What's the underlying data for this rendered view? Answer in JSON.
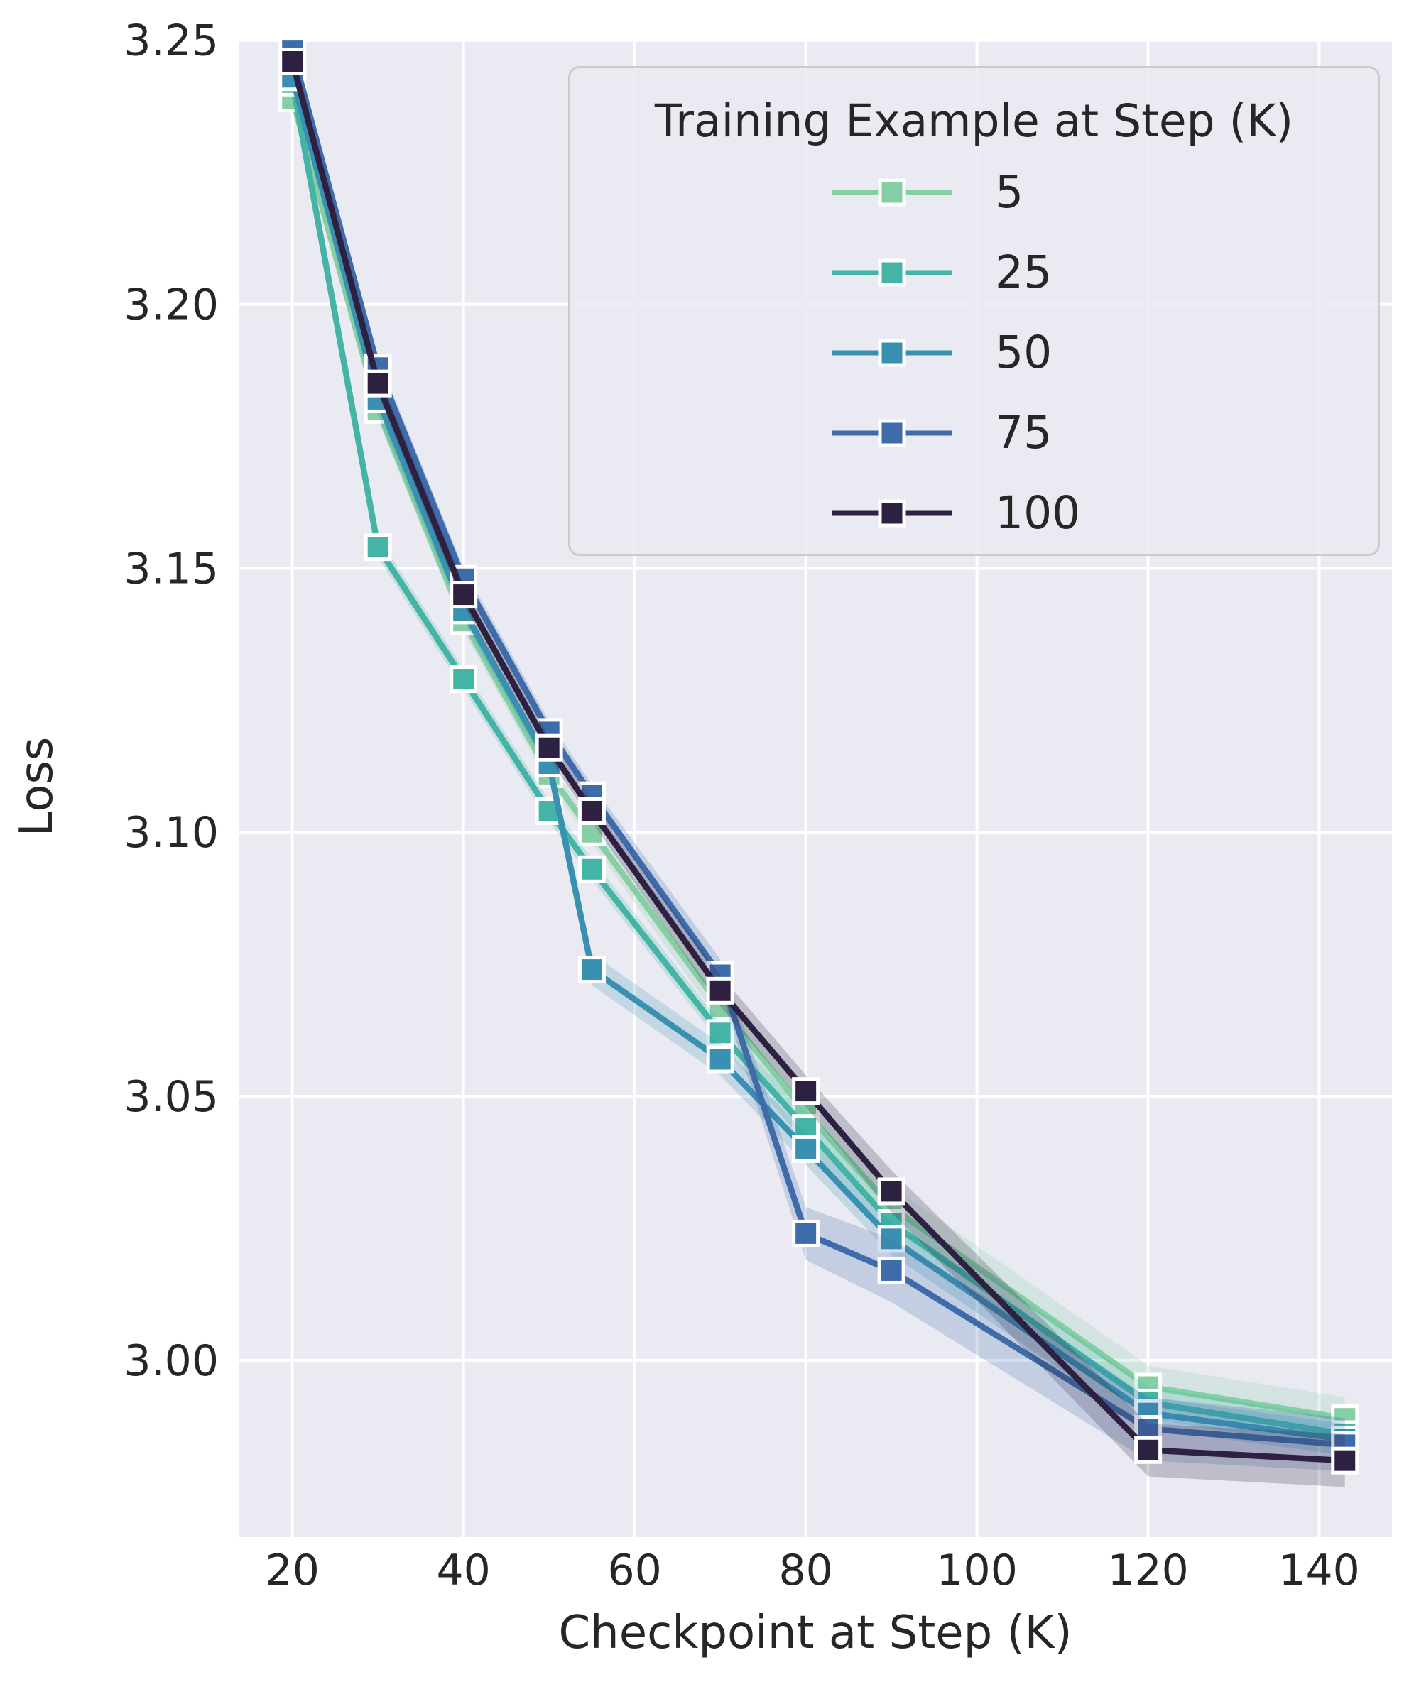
{
  "chart_data": {
    "type": "line",
    "title": "",
    "xlabel": "Checkpoint at Step (K)",
    "ylabel": "Loss",
    "legend_title": "Training Example at Step (K)",
    "legend_position": "upper right",
    "grid": true,
    "background": "#eaeaf2",
    "grid_color": "#ffffff",
    "text_color": "#262626",
    "x": [
      20,
      30,
      40,
      50,
      55,
      70,
      80,
      90,
      120,
      143
    ],
    "x_ticks": [
      20,
      40,
      60,
      80,
      100,
      120,
      140
    ],
    "y_ticks": [
      3.25,
      3.2,
      3.15,
      3.1,
      3.05,
      3.0
    ],
    "xlim": [
      13.8,
      148.5
    ],
    "ylim": [
      2.9665,
      3.2501
    ],
    "marker": "square",
    "series": [
      {
        "name": "5",
        "color": "#86cfa4",
        "values": [
          3.239,
          3.18,
          3.14,
          3.111,
          3.1,
          3.067,
          3.047,
          3.029,
          2.995,
          2.989
        ],
        "band": [
          0.002,
          0.002,
          0.002,
          0.002,
          0.002,
          0.003,
          0.003,
          0.004,
          0.004,
          0.004
        ]
      },
      {
        "name": "25",
        "color": "#43b4a5",
        "values": [
          3.242,
          3.154,
          3.129,
          3.104,
          3.093,
          3.062,
          3.044,
          3.026,
          2.992,
          2.986
        ],
        "band": [
          0.002,
          0.002,
          0.002,
          0.002,
          0.002,
          0.002,
          0.003,
          0.003,
          0.003,
          0.003
        ]
      },
      {
        "name": "50",
        "color": "#3a90b0",
        "values": [
          3.243,
          3.182,
          3.142,
          3.113,
          3.074,
          3.057,
          3.04,
          3.023,
          2.99,
          2.985
        ],
        "band": [
          0.002,
          0.003,
          0.002,
          0.002,
          0.003,
          0.003,
          0.003,
          0.003,
          0.003,
          0.003
        ]
      },
      {
        "name": "75",
        "color": "#3e6cab",
        "values": [
          3.248,
          3.188,
          3.148,
          3.119,
          3.107,
          3.073,
          3.024,
          3.017,
          2.987,
          2.984
        ],
        "band": [
          0.002,
          0.002,
          0.002,
          0.002,
          0.002,
          0.003,
          0.005,
          0.006,
          0.006,
          0.005
        ]
      },
      {
        "name": "100",
        "color": "#2e2040",
        "values": [
          3.246,
          3.185,
          3.145,
          3.116,
          3.104,
          3.07,
          3.051,
          3.032,
          2.983,
          2.981
        ],
        "band": [
          0.002,
          0.002,
          0.002,
          0.002,
          0.002,
          0.003,
          0.003,
          0.004,
          0.005,
          0.005
        ]
      }
    ]
  }
}
